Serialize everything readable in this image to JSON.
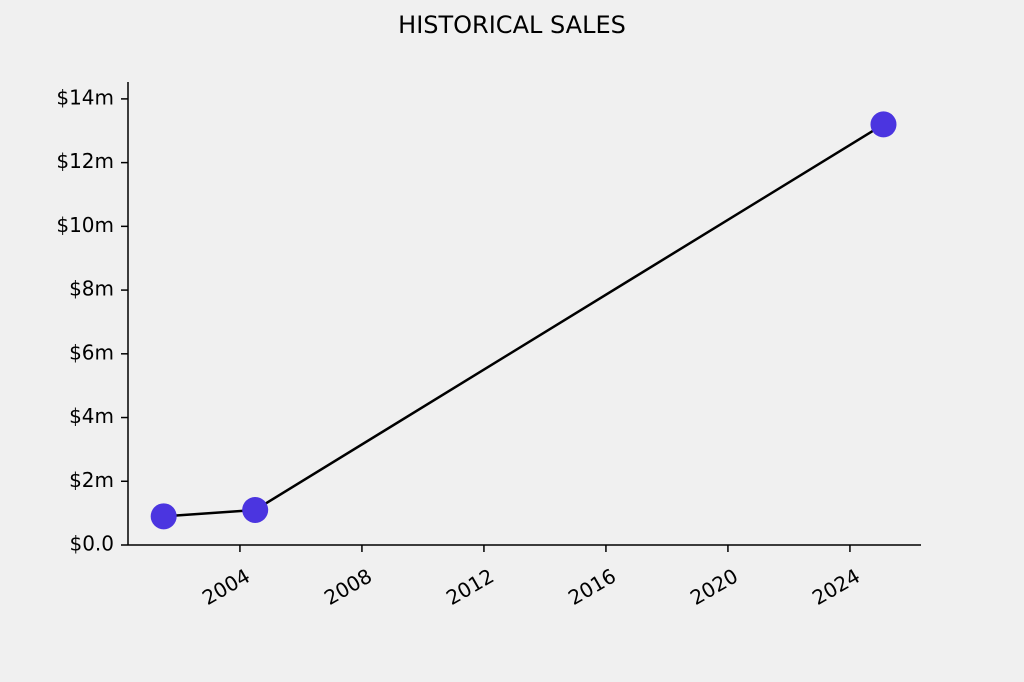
{
  "chart_data": {
    "type": "line",
    "title": "HISTORICAL SALES",
    "x": [
      2001.5,
      2004.5,
      2025.1
    ],
    "values": [
      0.9,
      1.1,
      13.2
    ],
    "color": "#4b35e0",
    "line_color": "#000000",
    "xlim": [
      2000.33,
      2026.33
    ],
    "xticks": [
      2004,
      2008,
      2012,
      2016,
      2020,
      2024
    ],
    "ylim": [
      0,
      14.53
    ],
    "yticks": [
      {
        "value": 0,
        "label": "$0.0"
      },
      {
        "value": 2,
        "label": "$2m"
      },
      {
        "value": 4,
        "label": "$4m"
      },
      {
        "value": 6,
        "label": "$6m"
      },
      {
        "value": 8,
        "label": "$8m"
      },
      {
        "value": 10,
        "label": "$10m"
      },
      {
        "value": 12,
        "label": "$12m"
      },
      {
        "value": 14,
        "label": "$14m"
      }
    ]
  }
}
